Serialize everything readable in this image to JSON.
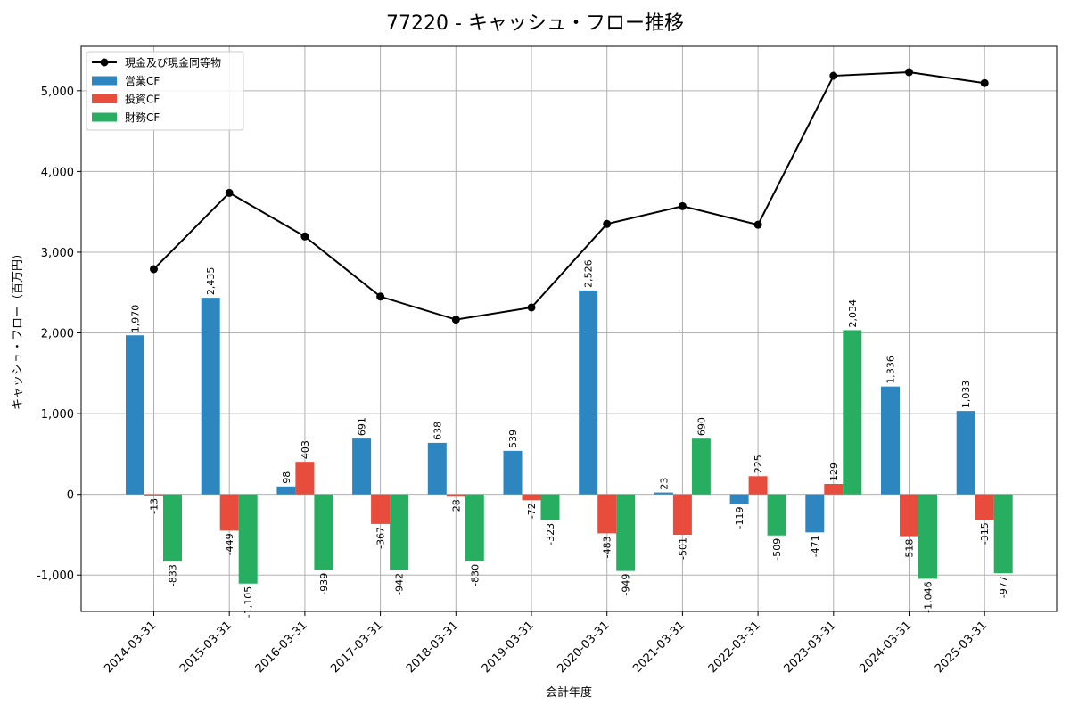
{
  "chart_data": {
    "type": "bar",
    "title": "77220 - キャッシュ・フロー推移",
    "xlabel": "会計年度",
    "ylabel": "キャッシュ・フロー（百万円）",
    "ylim": [
      -1450,
      5550
    ],
    "yticks": [
      -1000,
      0,
      1000,
      2000,
      3000,
      4000,
      5000
    ],
    "ytick_labels": [
      "-1,000",
      "0",
      "1,000",
      "2,000",
      "3,000",
      "4,000",
      "5,000"
    ],
    "grid": true,
    "legend_position": "top-left",
    "categories": [
      "2014-03-31",
      "2015-03-31",
      "2016-03-31",
      "2017-03-31",
      "2018-03-31",
      "2019-03-31",
      "2020-03-31",
      "2021-03-31",
      "2022-03-31",
      "2023-03-31",
      "2024-03-31",
      "2025-03-31"
    ],
    "series": [
      {
        "name": "営業CF",
        "kind": "bar",
        "color": "#2e86c1",
        "values": [
          1970,
          2435,
          98,
          691,
          638,
          539,
          2526,
          23,
          -119,
          -471,
          1336,
          1033
        ],
        "labels": [
          "1,970",
          "2,435",
          "98",
          "691",
          "638",
          "539",
          "2,526",
          "23",
          "-119",
          "-471",
          "1,336",
          "1,033"
        ]
      },
      {
        "name": "投資CF",
        "kind": "bar",
        "color": "#e74c3c",
        "values": [
          -13,
          -449,
          403,
          -367,
          -28,
          -72,
          -483,
          -501,
          225,
          129,
          -518,
          -315
        ],
        "labels": [
          "-13",
          "-449",
          "403",
          "-367",
          "-28",
          "-72",
          "-483",
          "-501",
          "225",
          "129",
          "-518",
          "-315"
        ]
      },
      {
        "name": "財務CF",
        "kind": "bar",
        "color": "#27ae60",
        "values": [
          -833,
          -1105,
          -939,
          -942,
          -830,
          -323,
          -949,
          690,
          -509,
          2034,
          -1046,
          -977
        ],
        "labels": [
          "-833",
          "-1,105",
          "-939",
          "-942",
          "-830",
          "-323",
          "-949",
          "690",
          "-509",
          "2,034",
          "-1,046",
          "-977"
        ]
      }
    ],
    "line": {
      "name": "現金及び現金同等物",
      "color": "#000000",
      "values": [
        2790,
        3735,
        3195,
        2450,
        2165,
        2315,
        3350,
        3570,
        3340,
        5185,
        5230,
        5095
      ]
    }
  }
}
